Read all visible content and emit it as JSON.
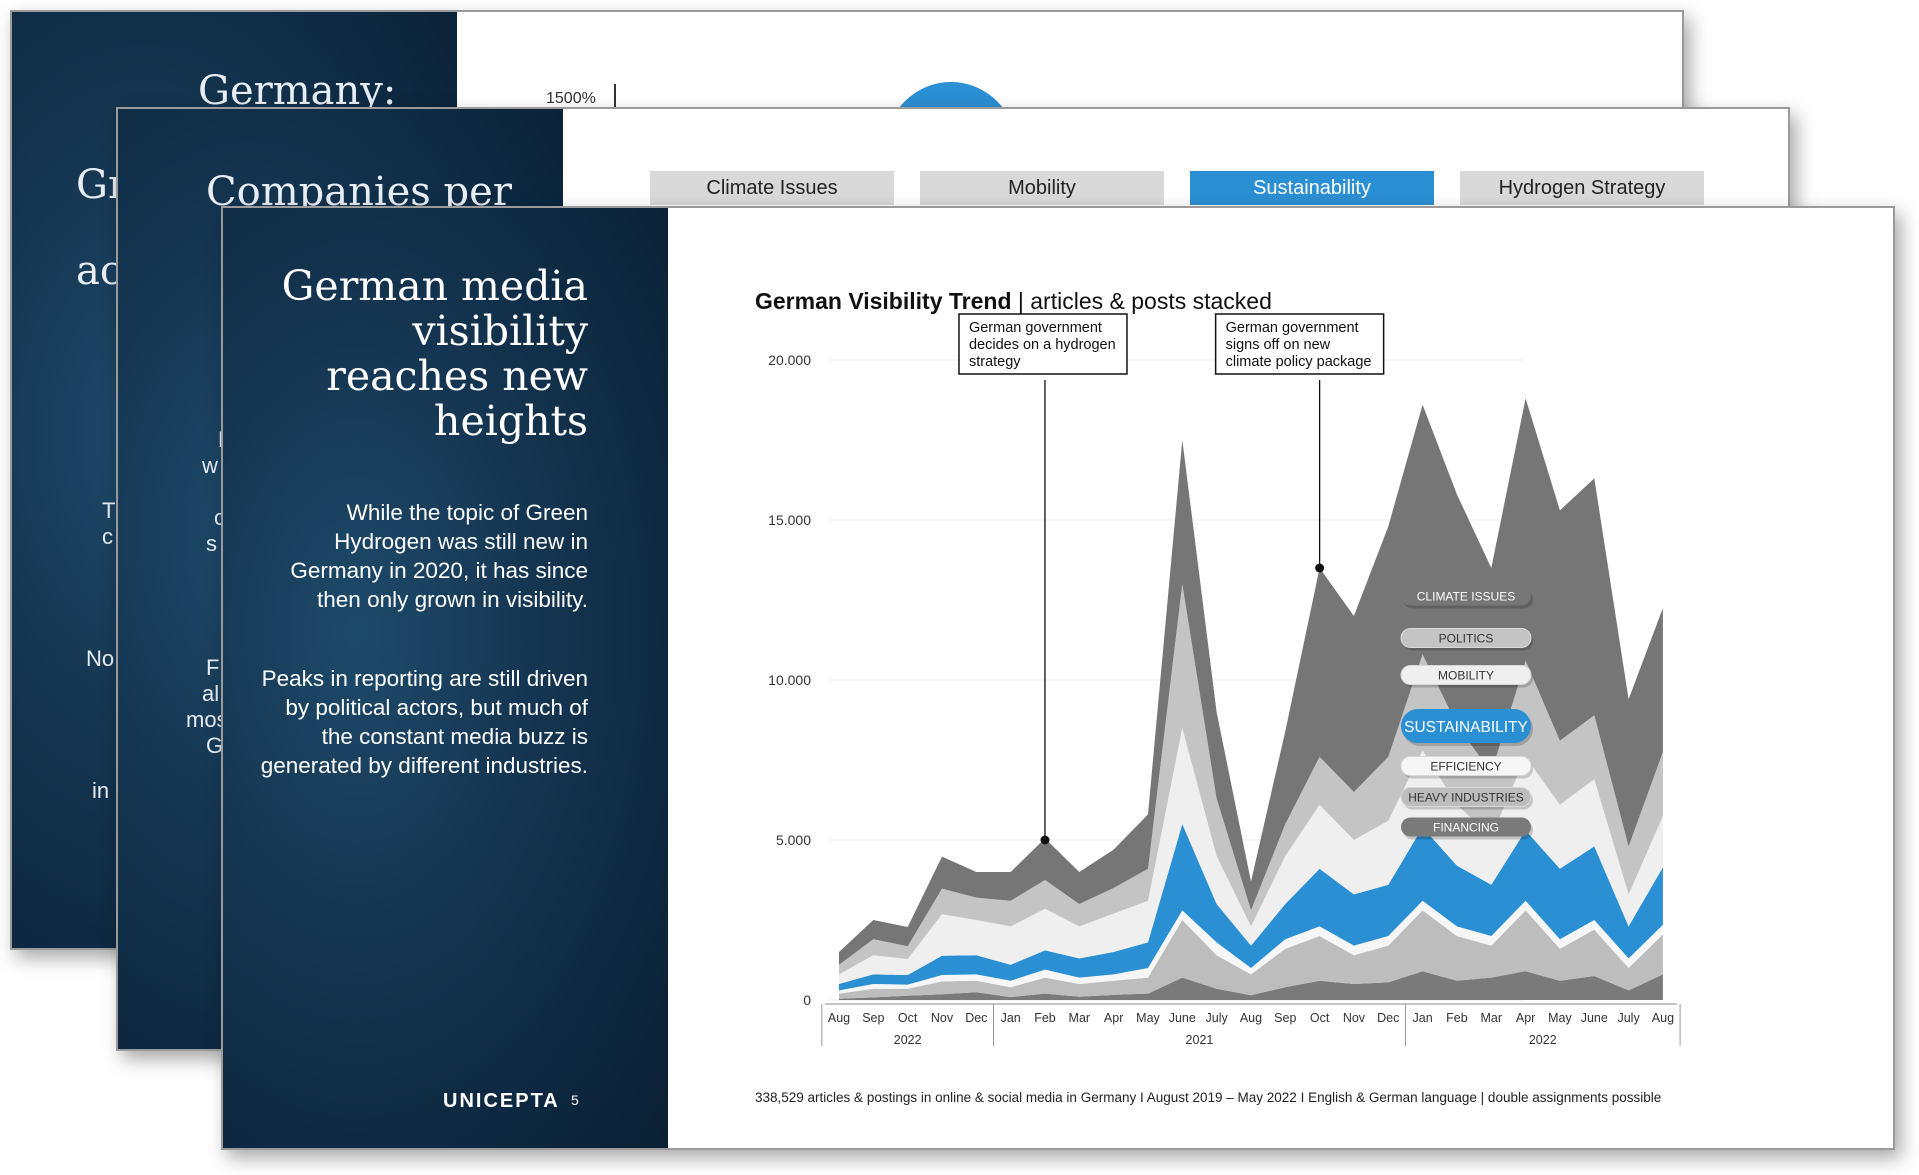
{
  "back_slide": {
    "title_fragments": [
      "Germany:",
      "Gr",
      "ac"
    ],
    "side_fragments": [
      "T",
      "c",
      "No",
      "in"
    ],
    "axis_label": "1500%"
  },
  "middle_slide": {
    "title_fragment": "Companies per",
    "side_fragments": [
      "H",
      "w",
      "c",
      "s",
      "F",
      "al",
      "mos",
      "G"
    ],
    "tabs": [
      {
        "label": "Climate Issues",
        "active": false
      },
      {
        "label": "Mobility",
        "active": false
      },
      {
        "label": "Sustainability",
        "active": true
      },
      {
        "label": "Hydrogen Strategy",
        "active": false
      }
    ]
  },
  "front_slide": {
    "headline": "German media visibility reaches new heights",
    "paragraph_1": "While the topic of Green Hydrogen was still new in Germany in 2020, it has since then only grown in visibility.",
    "paragraph_2": "Peaks in reporting are still driven by political actors, but much of the constant media buzz is generated by different industries.",
    "logo": "UNICEPTA",
    "page_number": "5",
    "footnote": "338,529 articles & postings in online & social media in Germany I August 2019 – May 2022 I English & German language | double assignments possible"
  },
  "colors": {
    "dark_panel": "#0d2840",
    "accent_blue": "#2b8fd3",
    "climate_issues": "#767676",
    "politics": "#c4c4c4",
    "mobility": "#efefef",
    "sustainability": "#2b8fd3",
    "efficiency": "#f6f6f6",
    "heavy_industries": "#bdbdbd",
    "financing": "#7a7a7a"
  },
  "chart_data": {
    "type": "area",
    "stacked": true,
    "title": "German Visibility Trend",
    "subtitle": "articles & posts stacked",
    "ylim": [
      0,
      20000
    ],
    "y_ticks": [
      "0",
      "5.000",
      "10.000",
      "15.000",
      "20.000"
    ],
    "grid": true,
    "x": [
      "Aug",
      "Sep",
      "Oct",
      "Nov",
      "Dec",
      "Jan",
      "Feb",
      "Mar",
      "Apr",
      "May",
      "June",
      "July",
      "Aug",
      "Sep",
      "Oct",
      "Nov",
      "Dec",
      "Jan",
      "Feb",
      "Mar",
      "Apr",
      "May",
      "June",
      "July",
      "Aug"
    ],
    "year_labels": [
      "2022",
      "2021",
      "2022"
    ],
    "legend_position": "right",
    "series": [
      {
        "name": "FINANCING",
        "values": [
          40,
          80,
          130,
          180,
          240,
          90,
          200,
          100,
          160,
          200,
          700,
          350,
          150,
          400,
          600,
          500,
          550,
          900,
          600,
          700,
          900,
          600,
          750,
          300,
          800
        ]
      },
      {
        "name": "HEAVY INDUSTRIES",
        "values": [
          160,
          270,
          220,
          400,
          360,
          310,
          500,
          400,
          440,
          500,
          1800,
          1050,
          650,
          1200,
          1400,
          900,
          1150,
          1900,
          1400,
          1000,
          1900,
          1000,
          1450,
          700,
          1250
        ]
      },
      {
        "name": "EFFICIENCY",
        "values": [
          100,
          150,
          130,
          200,
          200,
          200,
          250,
          200,
          200,
          300,
          300,
          400,
          200,
          300,
          300,
          300,
          300,
          300,
          300,
          300,
          300,
          300,
          300,
          300,
          300
        ]
      },
      {
        "name": "SUSTAINABILITY",
        "values": [
          200,
          300,
          300,
          600,
          600,
          500,
          600,
          600,
          700,
          800,
          2700,
          1200,
          700,
          1100,
          1800,
          1600,
          1600,
          2300,
          1900,
          1600,
          2200,
          2200,
          2300,
          1000,
          1800
        ]
      },
      {
        "name": "MOBILITY",
        "values": [
          300,
          600,
          500,
          1300,
          1100,
          1200,
          1300,
          1000,
          1200,
          1300,
          3000,
          1500,
          600,
          1500,
          2000,
          1700,
          2000,
          2400,
          1900,
          1500,
          2300,
          2000,
          2100,
          1000,
          1600
        ]
      },
      {
        "name": "POLITICS",
        "values": [
          300,
          500,
          400,
          800,
          700,
          800,
          900,
          700,
          800,
          1000,
          4500,
          1800,
          500,
          1000,
          1500,
          1500,
          2000,
          3000,
          2500,
          2000,
          3000,
          2000,
          2000,
          1500,
          2000
        ]
      },
      {
        "name": "CLIMATE ISSUES",
        "values": [
          400,
          600,
          600,
          1000,
          800,
          900,
          1300,
          1000,
          1200,
          1700,
          4500,
          2700,
          900,
          2900,
          5900,
          5500,
          7200,
          7800,
          7200,
          6400,
          8200,
          7200,
          7400,
          4600,
          4500
        ]
      }
    ],
    "annotations": [
      {
        "text": [
          "German government",
          "decides on a hydrogen",
          "strategy"
        ],
        "x_index": 6,
        "y": 5000
      },
      {
        "text": [
          "German government",
          "signs off on new",
          "climate policy package"
        ],
        "x_index": 14,
        "y": 13500
      }
    ]
  }
}
